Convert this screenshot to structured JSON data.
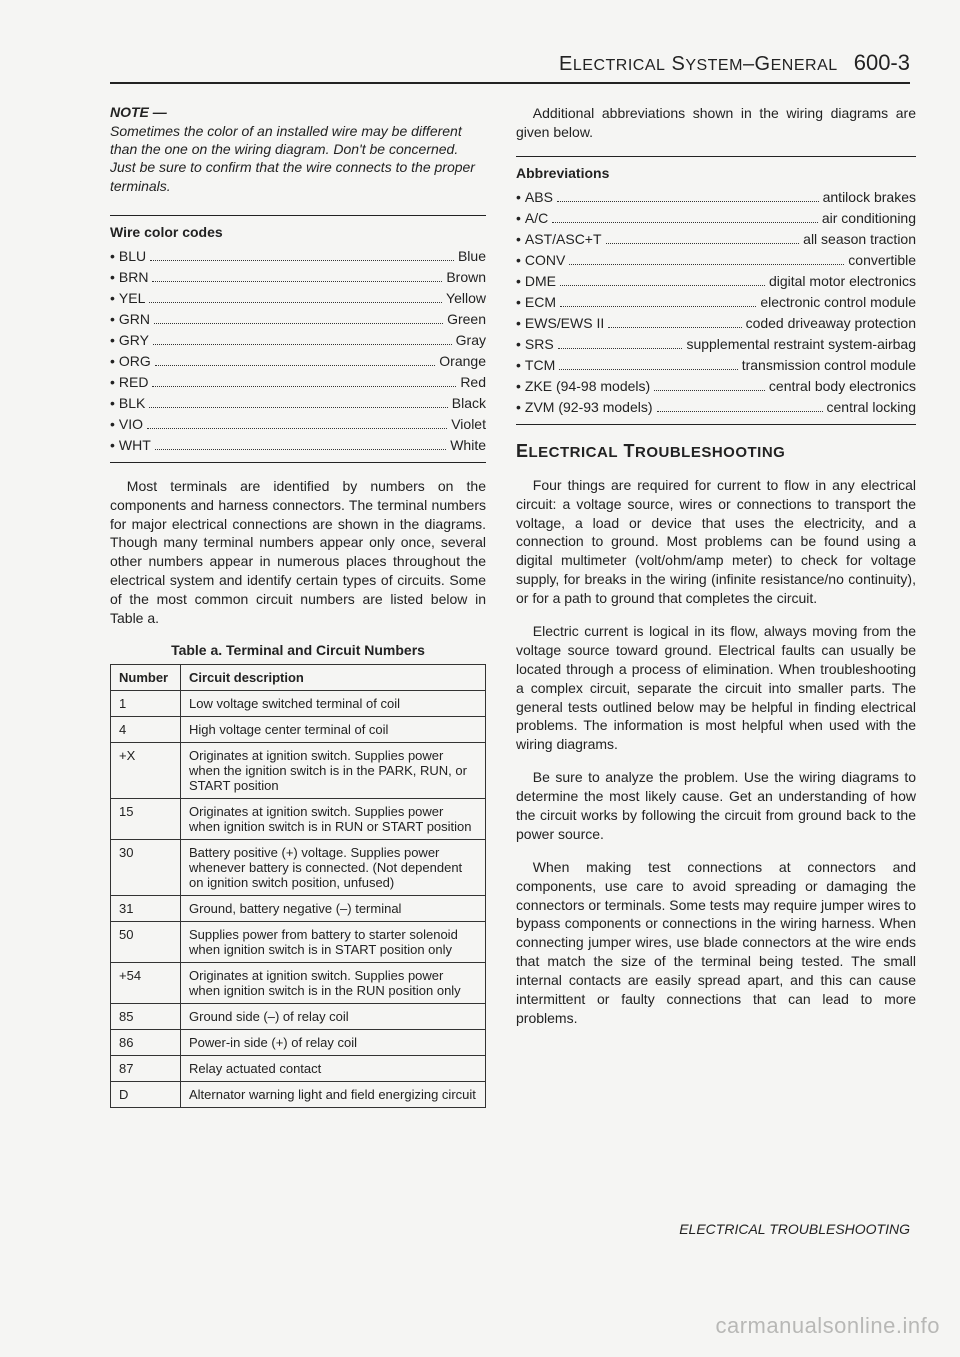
{
  "header": {
    "section": "ELECTRICAL SYSTEM–GENERAL",
    "page": "600-3"
  },
  "note": {
    "label": "NOTE —",
    "body": "Sometimes the color of an installed wire may be different than the one on the wiring diagram. Don't be concerned. Just be sure to confirm that the wire connects to the proper terminals."
  },
  "wireCodes": {
    "title": "Wire color codes",
    "items": [
      {
        "abbr": "BLU",
        "name": "Blue"
      },
      {
        "abbr": "BRN",
        "name": "Brown"
      },
      {
        "abbr": "YEL",
        "name": "Yellow"
      },
      {
        "abbr": "GRN",
        "name": "Green"
      },
      {
        "abbr": "GRY",
        "name": "Gray"
      },
      {
        "abbr": "ORG",
        "name": "Orange"
      },
      {
        "abbr": "RED",
        "name": "Red"
      },
      {
        "abbr": "BLK",
        "name": "Black"
      },
      {
        "abbr": "VIO",
        "name": "Violet"
      },
      {
        "abbr": "WHT",
        "name": "White"
      }
    ]
  },
  "terminalsPara": "Most terminals are identified by numbers on the components and harness connectors. The terminal numbers for major electrical connections are shown in the diagrams. Though many terminal numbers appear only once, several other numbers appear in numerous places throughout the electrical system and identify certain types of circuits. Some of the most common circuit numbers are listed below in Table a.",
  "table": {
    "caption": "Table a. Terminal and Circuit Numbers",
    "head": {
      "c1": "Number",
      "c2": "Circuit description"
    },
    "rows": [
      {
        "n": "1",
        "d": "Low voltage switched terminal of coil"
      },
      {
        "n": "4",
        "d": "High voltage center terminal of coil"
      },
      {
        "n": "+X",
        "d": "Originates at ignition switch. Supplies power when the ignition switch is in the PARK, RUN, or START position"
      },
      {
        "n": "15",
        "d": "Originates at ignition switch. Supplies power when ignition switch is in RUN or START position"
      },
      {
        "n": "30",
        "d": "Battery positive (+) voltage. Supplies power whenever battery is connected. (Not dependent on ignition switch position, unfused)"
      },
      {
        "n": "31",
        "d": "Ground, battery negative (–) terminal"
      },
      {
        "n": "50",
        "d": "Supplies power from battery to starter solenoid when ignition switch is in START position only"
      },
      {
        "n": "+54",
        "d": "Originates at ignition switch. Supplies power when ignition switch is in the RUN position only"
      },
      {
        "n": "85",
        "d": "Ground side (–) of relay coil"
      },
      {
        "n": "86",
        "d": "Power-in side (+) of relay coil"
      },
      {
        "n": "87",
        "d": "Relay actuated contact"
      },
      {
        "n": "D",
        "d": "Alternator warning light and field energizing circuit"
      }
    ]
  },
  "abbrev": {
    "intro": "Additional abbreviations shown in the wiring diagrams are given below.",
    "title": "Abbreviations",
    "items": [
      {
        "abbr": "ABS",
        "name": "antilock brakes"
      },
      {
        "abbr": "A/C",
        "name": "air conditioning"
      },
      {
        "abbr": "AST/ASC+T",
        "name": "all season traction"
      },
      {
        "abbr": "CONV",
        "name": "convertible"
      },
      {
        "abbr": "DME",
        "name": "digital motor electronics"
      },
      {
        "abbr": "ECM",
        "name": "electronic control module"
      },
      {
        "abbr": "EWS/EWS II",
        "name": "coded driveaway protection"
      },
      {
        "abbr": "SRS",
        "name": "supplemental restraint system-airbag"
      },
      {
        "abbr": "TCM",
        "name": "transmission control module"
      },
      {
        "abbr": "ZKE (94-98 models)",
        "name": "central body electronics"
      },
      {
        "abbr": "ZVM (92-93 models)",
        "name": "central locking"
      }
    ]
  },
  "troubleshooting": {
    "title": "ELECTRICAL TROUBLESHOOTING",
    "p1": "Four things are required for current to flow in any electrical circuit: a voltage source, wires or connections to transport the voltage, a load or device that uses the electricity, and a connection to ground. Most problems can be found using a digital multimeter (volt/ohm/amp meter) to check for voltage supply, for breaks in the wiring (infinite resistance/no continuity), or for a path to ground that completes the circuit.",
    "p2": "Electric current is logical in its flow, always moving from the voltage source toward ground. Electrical faults can usually be located through a process of elimination. When troubleshooting a complex circuit, separate the circuit into smaller parts. The general tests outlined below may be helpful in finding electrical problems. The information is most helpful when used with the wiring diagrams.",
    "p3": "Be sure to analyze the problem. Use the wiring diagrams to determine the most likely cause. Get an understanding of how the circuit works by following the circuit from ground back to the power source.",
    "p4": "When making test connections at connectors and components, use care to avoid spreading or damaging the connectors or terminals. Some tests may require jumper wires to bypass components or connections in the wiring harness. When connecting jumper wires, use blade connectors at the wire ends that match the size of the terminal being tested. The small internal contacts are easily spread apart, and this can cause intermittent or faulty connections that can lead to more problems."
  },
  "footer": "ELECTRICAL TROUBLESHOOTING",
  "watermark": "carmanualsonline.info"
}
